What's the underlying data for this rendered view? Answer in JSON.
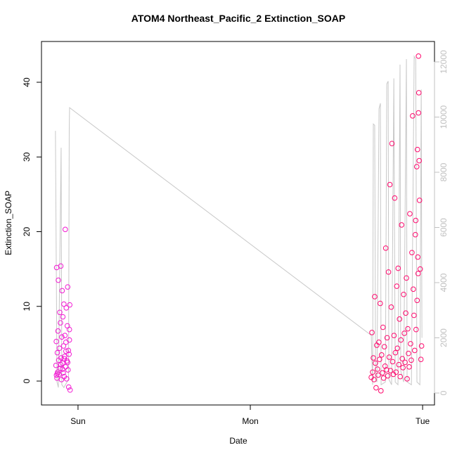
{
  "chart_data": {
    "type": "scatter",
    "title": "ATOM4 Northeast_Pacific_2 Extinction_SOAP",
    "xlabel": "Date",
    "ylabel": "Extinction_SOAP",
    "xlim": [
      -0.212,
      2.069
    ],
    "ylim": [
      -3.2,
      45.46
    ],
    "y2lim": [
      -433,
      12739
    ],
    "xticks": [
      {
        "value": 0,
        "label": "Sun"
      },
      {
        "value": 1,
        "label": "Mon"
      },
      {
        "value": 2,
        "label": "Tue"
      }
    ],
    "yticks": [
      0,
      10,
      20,
      30,
      40
    ],
    "y2ticks": [
      0,
      2000,
      4000,
      6000,
      8000,
      10000,
      12000
    ],
    "y2color": "#c0c0c0",
    "series": [
      {
        "color": "#f21ad2",
        "x": [
          -0.128,
          -0.126,
          -0.124,
          -0.122,
          -0.12,
          -0.118,
          -0.116,
          -0.114,
          -0.112,
          -0.11,
          -0.108,
          -0.106,
          -0.104,
          -0.102,
          -0.1,
          -0.098,
          -0.096,
          -0.094,
          -0.092,
          -0.09,
          -0.088,
          -0.086,
          -0.084,
          -0.082,
          -0.08,
          -0.078,
          -0.076,
          -0.074,
          -0.072,
          -0.07,
          -0.068,
          -0.066,
          -0.064,
          -0.062,
          -0.06,
          -0.058,
          -0.056,
          -0.054,
          -0.052,
          -0.05,
          -0.048,
          -0.046,
          -0.12,
          -0.1,
          -0.08,
          -0.06,
          -0.125,
          -0.09,
          -0.07,
          -0.05
        ],
        "values": [
          2.1,
          5.3,
          15.2,
          0.4,
          3.8,
          1.2,
          6.7,
          13.5,
          2.8,
          0.9,
          4.4,
          9.2,
          1.7,
          7.8,
          15.4,
          3.1,
          0.2,
          5.9,
          12.1,
          2.4,
          8.6,
          1.1,
          4.7,
          10.3,
          0.6,
          3.3,
          6.1,
          20.3,
          1.9,
          5.2,
          9.8,
          0.3,
          2.7,
          7.4,
          12.6,
          1.5,
          4.1,
          -0.8,
          3.6,
          6.9,
          10.2,
          -1.2,
          1.0,
          2.2,
          3.0,
          2.5,
          0.8,
          1.6,
          4.0,
          5.5
        ]
      },
      {
        "color": "#ff0a6e",
        "x": [
          1.702,
          1.706,
          1.71,
          1.714,
          1.718,
          1.722,
          1.726,
          1.73,
          1.734,
          1.738,
          1.742,
          1.746,
          1.75,
          1.754,
          1.758,
          1.762,
          1.766,
          1.77,
          1.774,
          1.778,
          1.782,
          1.786,
          1.79,
          1.794,
          1.798,
          1.802,
          1.806,
          1.81,
          1.814,
          1.818,
          1.822,
          1.826,
          1.83,
          1.834,
          1.838,
          1.842,
          1.846,
          1.85,
          1.854,
          1.858,
          1.862,
          1.866,
          1.87,
          1.874,
          1.878,
          1.882,
          1.886,
          1.89,
          1.894,
          1.898,
          1.902,
          1.906,
          1.91,
          1.914,
          1.918,
          1.922,
          1.926,
          1.93,
          1.934,
          1.938,
          1.942,
          1.946,
          1.95,
          1.954,
          1.958,
          1.962,
          1.966,
          1.97,
          1.974,
          1.978,
          1.982,
          1.986,
          1.99,
          1.994,
          1.976,
          1.976,
          1.98,
          1.972,
          1.968,
          1.96
        ],
        "values": [
          0.5,
          6.5,
          1.2,
          3.1,
          0.2,
          11.3,
          2.4,
          -0.9,
          4.8,
          1.6,
          0.8,
          5.2,
          2.9,
          10.4,
          -1.3,
          3.5,
          1.1,
          7.2,
          0.4,
          4.6,
          2.0,
          17.8,
          1.5,
          5.8,
          0.7,
          14.6,
          3.2,
          26.3,
          1.4,
          9.9,
          31.8,
          2.6,
          0.9,
          6.1,
          24.5,
          3.8,
          1.2,
          12.7,
          4.4,
          15.1,
          2.2,
          8.3,
          0.6,
          5.5,
          20.9,
          3.0,
          1.8,
          11.6,
          6.4,
          2.5,
          9.1,
          13.8,
          0.3,
          7.0,
          3.7,
          1.9,
          22.4,
          5.0,
          2.8,
          17.2,
          35.5,
          12.3,
          8.8,
          4.1,
          19.6,
          6.9,
          28.7,
          31.0,
          14.4,
          38.6,
          24.2,
          15.0,
          2.9,
          4.7,
          43.5,
          35.9,
          29.5,
          16.6,
          10.8,
          21.5
        ]
      },
      {
        "type": "line",
        "axis": "y2",
        "color": "#c8c8c8",
        "x": [
          -0.131,
          -0.122,
          -0.114,
          -0.098,
          -0.094,
          -0.082,
          -0.055,
          -0.051,
          -0.049,
          1.702,
          1.71,
          1.714,
          1.722,
          1.727,
          1.735,
          1.747,
          1.755,
          1.759,
          1.784,
          1.792,
          1.8,
          1.804,
          1.82,
          1.833,
          1.841,
          1.857,
          1.869,
          1.873,
          1.89,
          1.906,
          1.91,
          1.935,
          1.951,
          1.96,
          1.967,
          1.984,
          1.992,
          1.996
        ],
        "values": [
          9500,
          400,
          200,
          8890,
          300,
          200,
          500,
          9500,
          10340,
          2090,
          300,
          9750,
          9700,
          500,
          400,
          10300,
          10500,
          300,
          400,
          11200,
          11300,
          500,
          300,
          11400,
          400,
          300,
          11900,
          800,
          400,
          12100,
          400,
          300,
          12200,
          12100,
          400,
          300,
          11000,
          2000
        ]
      }
    ]
  }
}
